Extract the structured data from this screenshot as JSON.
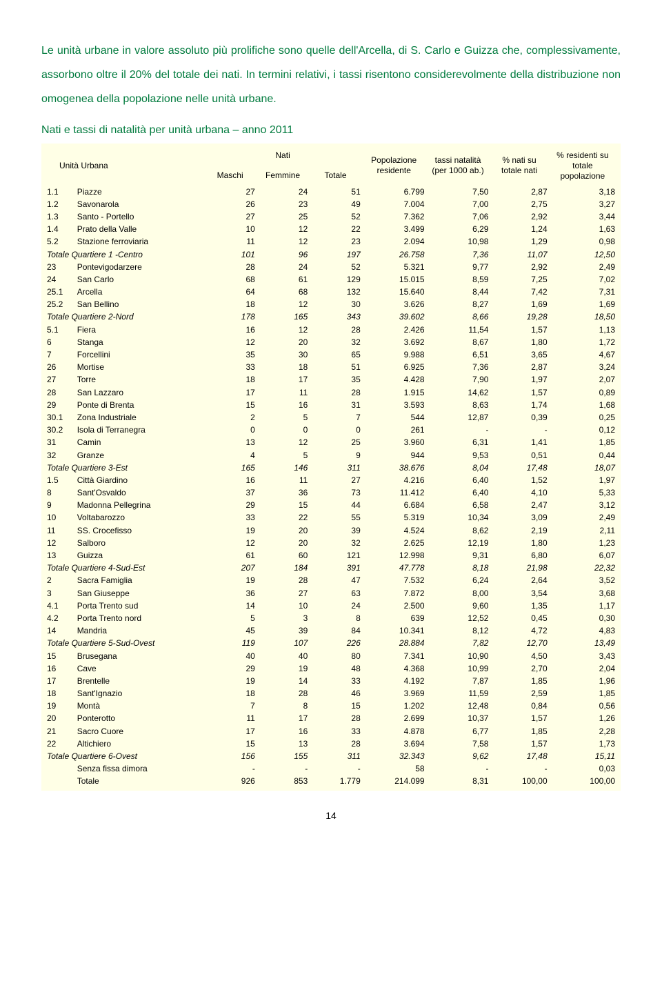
{
  "paragraph": "Le unità urbane in valore assoluto più prolifiche sono quelle dell'Arcella, di S. Carlo e Guizza che, complessivamente, assorbono oltre il 20% del totale dei nati. In termini relativi, i tassi risentono considerevolmente della distribuzione non omogenea della popolazione nelle unità urbane.",
  "subtitle": "Nati e tassi di natalità per unità urbana – anno 2011",
  "headers": {
    "unita": "Unità Urbana",
    "nati": "Nati",
    "maschi": "Maschi",
    "femmine": "Femmine",
    "totale": "Totale",
    "pop": "Popolazione residente",
    "tassi": "tassi natalità (per 1000 ab.)",
    "pctnati": "% nati su totale nati",
    "pctres": "% residenti su totale popolazione"
  },
  "rows": [
    {
      "code": "1.1",
      "name": "Piazze",
      "m": "27",
      "f": "24",
      "t": "51",
      "pop": "6.799",
      "rate": "7,50",
      "pn": "2,87",
      "pr": "3,18"
    },
    {
      "code": "1.2",
      "name": "Savonarola",
      "m": "26",
      "f": "23",
      "t": "49",
      "pop": "7.004",
      "rate": "7,00",
      "pn": "2,75",
      "pr": "3,27"
    },
    {
      "code": "1.3",
      "name": "Santo - Portello",
      "m": "27",
      "f": "25",
      "t": "52",
      "pop": "7.362",
      "rate": "7,06",
      "pn": "2,92",
      "pr": "3,44"
    },
    {
      "code": "1.4",
      "name": "Prato della Valle",
      "m": "10",
      "f": "12",
      "t": "22",
      "pop": "3.499",
      "rate": "6,29",
      "pn": "1,24",
      "pr": "1,63"
    },
    {
      "code": "5.2",
      "name": "Stazione ferroviaria",
      "m": "11",
      "f": "12",
      "t": "23",
      "pop": "2.094",
      "rate": "10,98",
      "pn": "1,29",
      "pr": "0,98"
    },
    {
      "total": true,
      "code": "",
      "name": "Totale Quartiere 1 -Centro",
      "m": "101",
      "f": "96",
      "t": "197",
      "pop": "26.758",
      "rate": "7,36",
      "pn": "11,07",
      "pr": "12,50"
    },
    {
      "code": "23",
      "name": "Pontevigodarzere",
      "m": "28",
      "f": "24",
      "t": "52",
      "pop": "5.321",
      "rate": "9,77",
      "pn": "2,92",
      "pr": "2,49"
    },
    {
      "code": "24",
      "name": "San Carlo",
      "m": "68",
      "f": "61",
      "t": "129",
      "pop": "15.015",
      "rate": "8,59",
      "pn": "7,25",
      "pr": "7,02"
    },
    {
      "code": "25.1",
      "name": "Arcella",
      "m": "64",
      "f": "68",
      "t": "132",
      "pop": "15.640",
      "rate": "8,44",
      "pn": "7,42",
      "pr": "7,31"
    },
    {
      "code": "25.2",
      "name": "San Bellino",
      "m": "18",
      "f": "12",
      "t": "30",
      "pop": "3.626",
      "rate": "8,27",
      "pn": "1,69",
      "pr": "1,69"
    },
    {
      "total": true,
      "code": "",
      "name": "Totale Quartiere 2-Nord",
      "m": "178",
      "f": "165",
      "t": "343",
      "pop": "39.602",
      "rate": "8,66",
      "pn": "19,28",
      "pr": "18,50"
    },
    {
      "code": "5.1",
      "name": "Fiera",
      "m": "16",
      "f": "12",
      "t": "28",
      "pop": "2.426",
      "rate": "11,54",
      "pn": "1,57",
      "pr": "1,13"
    },
    {
      "code": "6",
      "name": "Stanga",
      "m": "12",
      "f": "20",
      "t": "32",
      "pop": "3.692",
      "rate": "8,67",
      "pn": "1,80",
      "pr": "1,72"
    },
    {
      "code": "7",
      "name": "Forcellini",
      "m": "35",
      "f": "30",
      "t": "65",
      "pop": "9.988",
      "rate": "6,51",
      "pn": "3,65",
      "pr": "4,67"
    },
    {
      "code": "26",
      "name": "Mortise",
      "m": "33",
      "f": "18",
      "t": "51",
      "pop": "6.925",
      "rate": "7,36",
      "pn": "2,87",
      "pr": "3,24"
    },
    {
      "code": "27",
      "name": "Torre",
      "m": "18",
      "f": "17",
      "t": "35",
      "pop": "4.428",
      "rate": "7,90",
      "pn": "1,97",
      "pr": "2,07"
    },
    {
      "code": "28",
      "name": "San Lazzaro",
      "m": "17",
      "f": "11",
      "t": "28",
      "pop": "1.915",
      "rate": "14,62",
      "pn": "1,57",
      "pr": "0,89"
    },
    {
      "code": "29",
      "name": "Ponte di Brenta",
      "m": "15",
      "f": "16",
      "t": "31",
      "pop": "3.593",
      "rate": "8,63",
      "pn": "1,74",
      "pr": "1,68"
    },
    {
      "code": "30.1",
      "name": "Zona Industriale",
      "m": "2",
      "f": "5",
      "t": "7",
      "pop": "544",
      "rate": "12,87",
      "pn": "0,39",
      "pr": "0,25"
    },
    {
      "code": "30.2",
      "name": "Isola di Terranegra",
      "m": "0",
      "f": "0",
      "t": "0",
      "pop": "261",
      "rate": "-",
      "pn": "-",
      "pr": "0,12"
    },
    {
      "code": "31",
      "name": "Camin",
      "m": "13",
      "f": "12",
      "t": "25",
      "pop": "3.960",
      "rate": "6,31",
      "pn": "1,41",
      "pr": "1,85"
    },
    {
      "code": "32",
      "name": "Granze",
      "m": "4",
      "f": "5",
      "t": "9",
      "pop": "944",
      "rate": "9,53",
      "pn": "0,51",
      "pr": "0,44"
    },
    {
      "total": true,
      "code": "",
      "name": "Totale Quartiere 3-Est",
      "m": "165",
      "f": "146",
      "t": "311",
      "pop": "38.676",
      "rate": "8,04",
      "pn": "17,48",
      "pr": "18,07"
    },
    {
      "code": "1.5",
      "name": "Città Giardino",
      "m": "16",
      "f": "11",
      "t": "27",
      "pop": "4.216",
      "rate": "6,40",
      "pn": "1,52",
      "pr": "1,97"
    },
    {
      "code": "8",
      "name": "Sant'Osvaldo",
      "m": "37",
      "f": "36",
      "t": "73",
      "pop": "11.412",
      "rate": "6,40",
      "pn": "4,10",
      "pr": "5,33"
    },
    {
      "code": "9",
      "name": "Madonna Pellegrina",
      "m": "29",
      "f": "15",
      "t": "44",
      "pop": "6.684",
      "rate": "6,58",
      "pn": "2,47",
      "pr": "3,12"
    },
    {
      "code": "10",
      "name": "Voltabarozzo",
      "m": "33",
      "f": "22",
      "t": "55",
      "pop": "5.319",
      "rate": "10,34",
      "pn": "3,09",
      "pr": "2,49"
    },
    {
      "code": "11",
      "name": "SS. Crocefisso",
      "m": "19",
      "f": "20",
      "t": "39",
      "pop": "4.524",
      "rate": "8,62",
      "pn": "2,19",
      "pr": "2,11"
    },
    {
      "code": "12",
      "name": "Salboro",
      "m": "12",
      "f": "20",
      "t": "32",
      "pop": "2.625",
      "rate": "12,19",
      "pn": "1,80",
      "pr": "1,23"
    },
    {
      "code": "13",
      "name": "Guizza",
      "m": "61",
      "f": "60",
      "t": "121",
      "pop": "12.998",
      "rate": "9,31",
      "pn": "6,80",
      "pr": "6,07"
    },
    {
      "total": true,
      "code": "",
      "name": "Totale Quartiere 4-Sud-Est",
      "m": "207",
      "f": "184",
      "t": "391",
      "pop": "47.778",
      "rate": "8,18",
      "pn": "21,98",
      "pr": "22,32"
    },
    {
      "code": "2",
      "name": "Sacra Famiglia",
      "m": "19",
      "f": "28",
      "t": "47",
      "pop": "7.532",
      "rate": "6,24",
      "pn": "2,64",
      "pr": "3,52"
    },
    {
      "code": "3",
      "name": "San Giuseppe",
      "m": "36",
      "f": "27",
      "t": "63",
      "pop": "7.872",
      "rate": "8,00",
      "pn": "3,54",
      "pr": "3,68"
    },
    {
      "code": "4.1",
      "name": "Porta Trento sud",
      "m": "14",
      "f": "10",
      "t": "24",
      "pop": "2.500",
      "rate": "9,60",
      "pn": "1,35",
      "pr": "1,17"
    },
    {
      "code": "4.2",
      "name": "Porta Trento nord",
      "m": "5",
      "f": "3",
      "t": "8",
      "pop": "639",
      "rate": "12,52",
      "pn": "0,45",
      "pr": "0,30"
    },
    {
      "code": "14",
      "name": "Mandria",
      "m": "45",
      "f": "39",
      "t": "84",
      "pop": "10.341",
      "rate": "8,12",
      "pn": "4,72",
      "pr": "4,83"
    },
    {
      "total": true,
      "code": "",
      "name": "Totale Quartiere 5-Sud-Ovest",
      "m": "119",
      "f": "107",
      "t": "226",
      "pop": "28.884",
      "rate": "7,82",
      "pn": "12,70",
      "pr": "13,49"
    },
    {
      "code": "15",
      "name": "Brusegana",
      "m": "40",
      "f": "40",
      "t": "80",
      "pop": "7.341",
      "rate": "10,90",
      "pn": "4,50",
      "pr": "3,43"
    },
    {
      "code": "16",
      "name": "Cave",
      "m": "29",
      "f": "19",
      "t": "48",
      "pop": "4.368",
      "rate": "10,99",
      "pn": "2,70",
      "pr": "2,04"
    },
    {
      "code": "17",
      "name": "Brentelle",
      "m": "19",
      "f": "14",
      "t": "33",
      "pop": "4.192",
      "rate": "7,87",
      "pn": "1,85",
      "pr": "1,96"
    },
    {
      "code": "18",
      "name": "Sant'Ignazio",
      "m": "18",
      "f": "28",
      "t": "46",
      "pop": "3.969",
      "rate": "11,59",
      "pn": "2,59",
      "pr": "1,85"
    },
    {
      "code": "19",
      "name": "Montà",
      "m": "7",
      "f": "8",
      "t": "15",
      "pop": "1.202",
      "rate": "12,48",
      "pn": "0,84",
      "pr": "0,56"
    },
    {
      "code": "20",
      "name": "Ponterotto",
      "m": "11",
      "f": "17",
      "t": "28",
      "pop": "2.699",
      "rate": "10,37",
      "pn": "1,57",
      "pr": "1,26"
    },
    {
      "code": "21",
      "name": "Sacro Cuore",
      "m": "17",
      "f": "16",
      "t": "33",
      "pop": "4.878",
      "rate": "6,77",
      "pn": "1,85",
      "pr": "2,28"
    },
    {
      "code": "22",
      "name": "Altichiero",
      "m": "15",
      "f": "13",
      "t": "28",
      "pop": "3.694",
      "rate": "7,58",
      "pn": "1,57",
      "pr": "1,73"
    },
    {
      "total": true,
      "code": "",
      "name": "Totale Quartiere 6-Ovest",
      "m": "156",
      "f": "155",
      "t": "311",
      "pop": "32.343",
      "rate": "9,62",
      "pn": "17,48",
      "pr": "15,11"
    },
    {
      "code": "",
      "name": "Senza fissa dimora",
      "m": "-",
      "f": "-",
      "t": "-",
      "pop": "58",
      "rate": "-",
      "pn": "-",
      "pr": "0,03"
    },
    {
      "code": "",
      "name": "Totale",
      "m": "926",
      "f": "853",
      "t": "1.779",
      "pop": "214.099",
      "rate": "8,31",
      "pn": "100,00",
      "pr": "100,00"
    }
  ],
  "pagenum": "14"
}
